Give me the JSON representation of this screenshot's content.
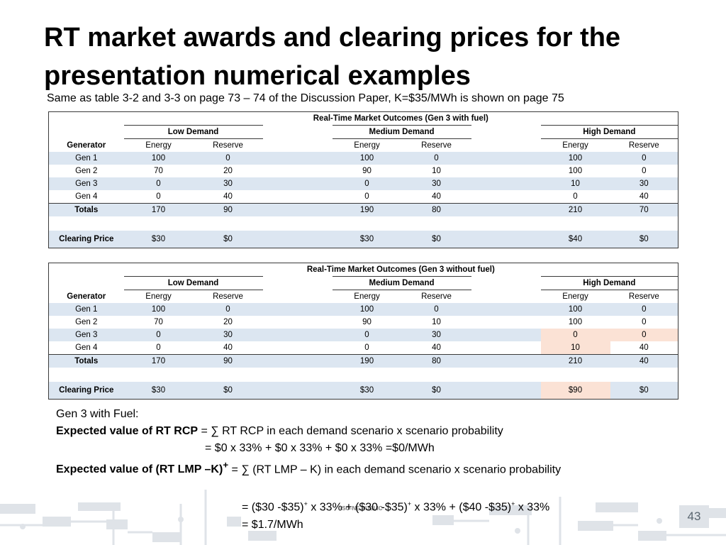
{
  "title": "RT market awards and clearing prices for the presentation numerical examples",
  "subtitle": "Same as table 3-2 and 3-3 on page 73 – 74 of the Discussion Paper, K=$35/MWh is shown on page 75",
  "table_common": {
    "col_generator": "Generator",
    "groups": [
      "Low Demand",
      "Medium Demand",
      "High Demand"
    ],
    "energy": "Energy",
    "reserve": "Reserve",
    "totals_label": "Totals",
    "price_label": "Clearing Price"
  },
  "table1": {
    "caption": "Real-Time Market Outcomes (Gen 3 with fuel)",
    "rows": [
      {
        "gen": "Gen 1",
        "v": [
          "100",
          "0",
          "100",
          "0",
          "100",
          "0"
        ]
      },
      {
        "gen": "Gen 2",
        "v": [
          "70",
          "20",
          "90",
          "10",
          "100",
          "0"
        ]
      },
      {
        "gen": "Gen 3",
        "v": [
          "0",
          "30",
          "0",
          "30",
          "10",
          "30"
        ]
      },
      {
        "gen": "Gen 4",
        "v": [
          "0",
          "40",
          "0",
          "40",
          "0",
          "40"
        ]
      }
    ],
    "totals": [
      "170",
      "90",
      "190",
      "80",
      "210",
      "70"
    ],
    "prices": [
      "$30",
      "$0",
      "$30",
      "$0",
      "$40",
      "$0"
    ]
  },
  "table2": {
    "caption": "Real-Time Market Outcomes (Gen 3 without fuel)",
    "rows": [
      {
        "gen": "Gen 1",
        "v": [
          "100",
          "0",
          "100",
          "0",
          "100",
          "0"
        ]
      },
      {
        "gen": "Gen 2",
        "v": [
          "70",
          "20",
          "90",
          "10",
          "100",
          "0"
        ]
      },
      {
        "gen": "Gen 3",
        "v": [
          "0",
          "30",
          "0",
          "30",
          "0",
          "0"
        ]
      },
      {
        "gen": "Gen 4",
        "v": [
          "0",
          "40",
          "0",
          "40",
          "10",
          "40"
        ]
      }
    ],
    "totals": [
      "170",
      "90",
      "190",
      "80",
      "210",
      "40"
    ],
    "prices": [
      "$30",
      "$0",
      "$30",
      "$0",
      "$90",
      "$0"
    ],
    "highlight_color": "#fbe2d5"
  },
  "formula": {
    "line1": "Gen 3 with Fuel:",
    "line2_bold": "Expected value of RT RCP",
    "line2_rest": " = ∑ RT RCP in each demand scenario x scenario probability",
    "line3": "= $0 x 33% + $0 x 33% + $0 x 33% =$0/MWh",
    "line4_bold": "Expected value of (RT LMP –K)",
    "line4_sup": "+",
    "line4_rest": " = ∑ (RT LMP – K) in each demand scenario x scenario probability",
    "line5_a": "= ($30 -$35)",
    "line5_b": " x 33% + ($30 -$35)",
    "line5_c": " x 33% + ($40 -$35)",
    "line5_d": " x 33%",
    "sup": "+",
    "line6": "= $1.7/MWh"
  },
  "footer": {
    "tag": "ISO-NE PUBLIC",
    "page": "43"
  },
  "colors": {
    "row_shade": "#dce6f1",
    "highlight": "#fbe2d5",
    "circuit": "#dfe3e8"
  }
}
